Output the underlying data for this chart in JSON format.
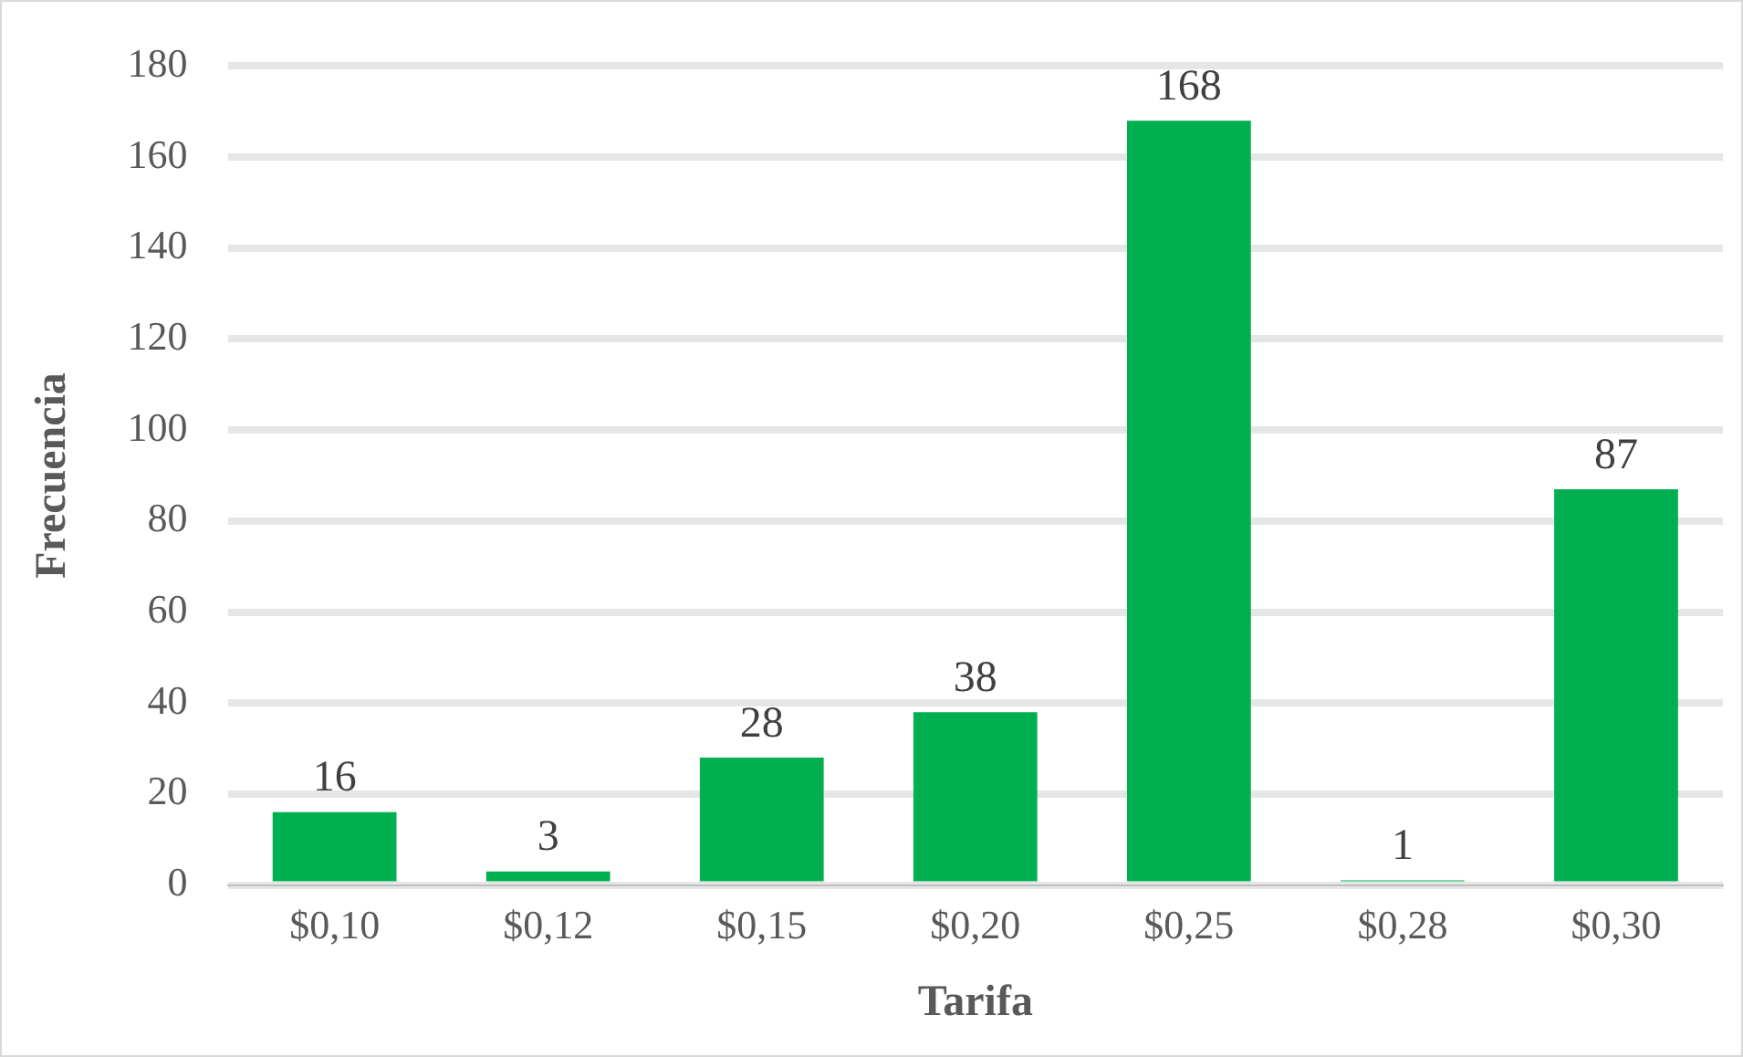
{
  "chart_data": {
    "type": "bar",
    "xlabel": "Tarifa",
    "ylabel": "Frecuencia",
    "categories": [
      "$0,10",
      "$0,12",
      "$0,15",
      "$0,20",
      "$0,25",
      "$0,28",
      "$0,30"
    ],
    "values": [
      16,
      3,
      28,
      38,
      168,
      1,
      87
    ],
    "color": "#00b050",
    "ylim": [
      0,
      180
    ],
    "yticks": [
      0,
      20,
      40,
      60,
      80,
      100,
      120,
      140,
      160,
      180
    ],
    "grid": "y",
    "data_labels": true,
    "legend": false
  }
}
